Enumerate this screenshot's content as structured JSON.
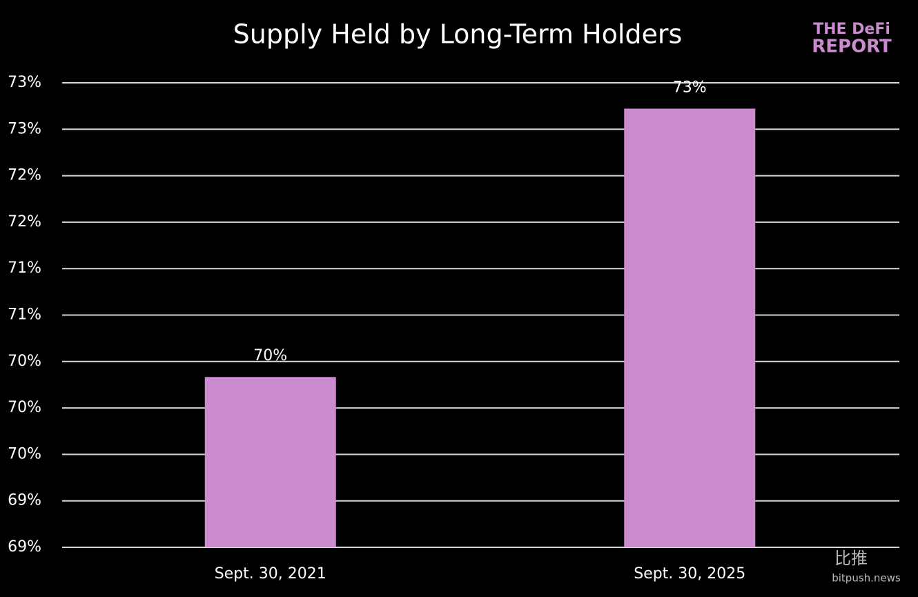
{
  "chart_data": {
    "type": "bar",
    "title": "Supply Held by Long-Term Holders",
    "categories": [
      "Sept. 30, 2021",
      "Sept. 30, 2025"
    ],
    "values": [
      70.3,
      72.9
    ],
    "value_labels": [
      "70%",
      "73%"
    ],
    "color": "#cb8bcf",
    "ylim": [
      68.65,
      73.15
    ],
    "yticks": [
      {
        "value": 68.65,
        "label": "69%"
      },
      {
        "value": 69.1,
        "label": "69%"
      },
      {
        "value": 69.55,
        "label": "70%"
      },
      {
        "value": 70,
        "label": "70%"
      },
      {
        "value": 70.45,
        "label": "70%"
      },
      {
        "value": 70.9,
        "label": "71%"
      },
      {
        "value": 71.35,
        "label": "71%"
      },
      {
        "value": 71.8,
        "label": "72%"
      },
      {
        "value": 72.25,
        "label": "72%"
      },
      {
        "value": 72.7,
        "label": "73%"
      },
      {
        "value": 73.15,
        "label": "73%"
      }
    ],
    "grid": true
  },
  "logo": {
    "line1": "THE DeFi",
    "line2": "REPORT"
  },
  "watermark": {
    "name": "比推",
    "site": "bitpush.news"
  }
}
